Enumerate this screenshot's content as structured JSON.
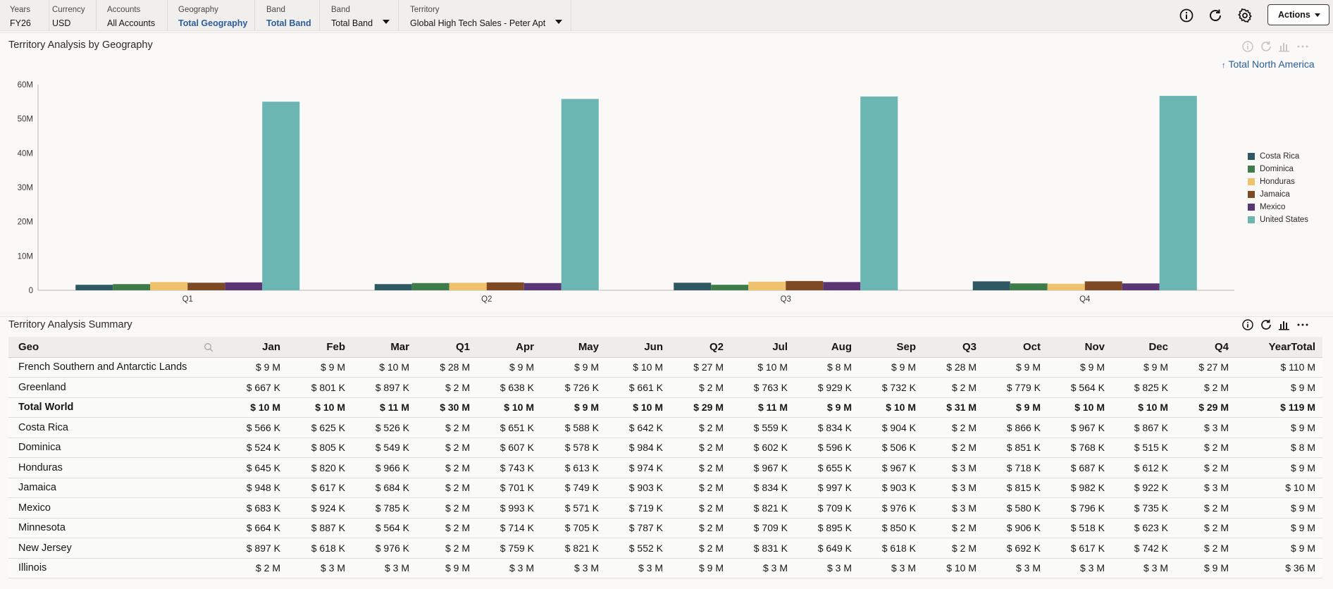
{
  "pov": [
    {
      "label": "Years",
      "value": "FY26",
      "link": false,
      "dropdown": false
    },
    {
      "label": "Currency",
      "value": "USD",
      "link": false,
      "dropdown": false
    },
    {
      "label": "Accounts",
      "value": "All Accounts",
      "link": false,
      "dropdown": false
    },
    {
      "label": "Geography",
      "value": "Total Geography",
      "link": true,
      "dropdown": false
    },
    {
      "label": "Band",
      "value": "Total Band",
      "link": true,
      "dropdown": false
    },
    {
      "label": "Band",
      "value": "Total Band",
      "link": false,
      "dropdown": true
    },
    {
      "label": "Territory",
      "value": "Global High Tech Sales - Peter Apt",
      "link": false,
      "dropdown": true
    }
  ],
  "header": {
    "actions_label": "Actions",
    "icons": [
      "info-icon",
      "refresh-icon",
      "gear-icon"
    ]
  },
  "chart_panel": {
    "title": "Territory Analysis by Geography",
    "drill_link": "Total North America",
    "tools": [
      "info-icon",
      "refresh-icon",
      "chart-icon",
      "more-icon"
    ]
  },
  "chart_data": {
    "type": "bar",
    "categories": [
      "Q1",
      "Q2",
      "Q3",
      "Q4"
    ],
    "series": [
      {
        "name": "Costa Rica",
        "color": "#2f5962",
        "values": [
          1.6,
          1.8,
          2.2,
          2.6
        ]
      },
      {
        "name": "Dominica",
        "color": "#3e7c4a",
        "values": [
          1.8,
          2.1,
          1.6,
          2.0
        ]
      },
      {
        "name": "Honduras",
        "color": "#f0c26e",
        "values": [
          2.4,
          2.2,
          2.5,
          1.9
        ]
      },
      {
        "name": "Jamaica",
        "color": "#7e4a24",
        "values": [
          2.2,
          2.3,
          2.7,
          2.6
        ]
      },
      {
        "name": "Mexico",
        "color": "#5a3574",
        "values": [
          2.3,
          2.1,
          2.4,
          2.0
        ]
      },
      {
        "name": "United States",
        "color": "#6bb6b2",
        "values": [
          55,
          55.8,
          56.5,
          56.7
        ]
      }
    ],
    "y_unit": "M",
    "ylim": [
      0,
      60
    ],
    "yticks": [
      "0",
      "10M",
      "20M",
      "30M",
      "40M",
      "50M",
      "60M"
    ],
    "grid": false,
    "legend": "right"
  },
  "summary_panel": {
    "title": "Territory Analysis Summary",
    "tools": [
      "info-icon",
      "refresh-icon",
      "chart-icon",
      "more-icon"
    ]
  },
  "table": {
    "columns": [
      "Geo",
      "Jan",
      "Feb",
      "Mar",
      "Q1",
      "Apr",
      "May",
      "Jun",
      "Q2",
      "Jul",
      "Aug",
      "Sep",
      "Q3",
      "Oct",
      "Nov",
      "Dec",
      "Q4",
      "YearTotal"
    ],
    "rows": [
      {
        "bold": false,
        "cells": [
          "French Southern and Antarctic Lands",
          "$ 9 M",
          "$ 9 M",
          "$ 10 M",
          "$ 28 M",
          "$ 9 M",
          "$ 9 M",
          "$ 10 M",
          "$ 27 M",
          "$ 10 M",
          "$ 8 M",
          "$ 9 M",
          "$ 28 M",
          "$ 9 M",
          "$ 9 M",
          "$ 9 M",
          "$ 27 M",
          "$ 110 M"
        ]
      },
      {
        "bold": false,
        "cells": [
          "Greenland",
          "$ 667 K",
          "$ 801 K",
          "$ 897 K",
          "$ 2 M",
          "$ 638 K",
          "$ 726 K",
          "$ 661 K",
          "$ 2 M",
          "$ 763 K",
          "$ 929 K",
          "$ 732 K",
          "$ 2 M",
          "$ 779 K",
          "$ 564 K",
          "$ 825 K",
          "$ 2 M",
          "$ 9 M"
        ]
      },
      {
        "bold": true,
        "cells": [
          "Total World",
          "$ 10 M",
          "$ 10 M",
          "$ 11 M",
          "$ 30 M",
          "$ 10 M",
          "$ 9 M",
          "$ 10 M",
          "$ 29 M",
          "$ 11 M",
          "$ 9 M",
          "$ 10 M",
          "$ 31 M",
          "$ 9 M",
          "$ 10 M",
          "$ 10 M",
          "$ 29 M",
          "$ 119 M"
        ]
      },
      {
        "bold": false,
        "cells": [
          "Costa Rica",
          "$ 566 K",
          "$ 625 K",
          "$ 526 K",
          "$ 2 M",
          "$ 651 K",
          "$ 588 K",
          "$ 642 K",
          "$ 2 M",
          "$ 559 K",
          "$ 834 K",
          "$ 904 K",
          "$ 2 M",
          "$ 866 K",
          "$ 967 K",
          "$ 867 K",
          "$ 3 M",
          "$ 9 M"
        ]
      },
      {
        "bold": false,
        "cells": [
          "Dominica",
          "$ 524 K",
          "$ 805 K",
          "$ 549 K",
          "$ 2 M",
          "$ 607 K",
          "$ 578 K",
          "$ 984 K",
          "$ 2 M",
          "$ 602 K",
          "$ 596 K",
          "$ 506 K",
          "$ 2 M",
          "$ 851 K",
          "$ 768 K",
          "$ 515 K",
          "$ 2 M",
          "$ 8 M"
        ]
      },
      {
        "bold": false,
        "cells": [
          "Honduras",
          "$ 645 K",
          "$ 820 K",
          "$ 966 K",
          "$ 2 M",
          "$ 743 K",
          "$ 613 K",
          "$ 974 K",
          "$ 2 M",
          "$ 967 K",
          "$ 655 K",
          "$ 967 K",
          "$ 3 M",
          "$ 718 K",
          "$ 687 K",
          "$ 612 K",
          "$ 2 M",
          "$ 9 M"
        ]
      },
      {
        "bold": false,
        "cells": [
          "Jamaica",
          "$ 948 K",
          "$ 617 K",
          "$ 684 K",
          "$ 2 M",
          "$ 701 K",
          "$ 749 K",
          "$ 903 K",
          "$ 2 M",
          "$ 834 K",
          "$ 997 K",
          "$ 903 K",
          "$ 3 M",
          "$ 815 K",
          "$ 982 K",
          "$ 922 K",
          "$ 3 M",
          "$ 10 M"
        ]
      },
      {
        "bold": false,
        "cells": [
          "Mexico",
          "$ 683 K",
          "$ 924 K",
          "$ 785 K",
          "$ 2 M",
          "$ 993 K",
          "$ 571 K",
          "$ 719 K",
          "$ 2 M",
          "$ 821 K",
          "$ 709 K",
          "$ 976 K",
          "$ 3 M",
          "$ 580 K",
          "$ 796 K",
          "$ 735 K",
          "$ 2 M",
          "$ 9 M"
        ]
      },
      {
        "bold": false,
        "cells": [
          "Minnesota",
          "$ 664 K",
          "$ 887 K",
          "$ 564 K",
          "$ 2 M",
          "$ 714 K",
          "$ 705 K",
          "$ 787 K",
          "$ 2 M",
          "$ 709 K",
          "$ 895 K",
          "$ 850 K",
          "$ 2 M",
          "$ 906 K",
          "$ 518 K",
          "$ 623 K",
          "$ 2 M",
          "$ 9 M"
        ]
      },
      {
        "bold": false,
        "cells": [
          "New Jersey",
          "$ 897 K",
          "$ 618 K",
          "$ 976 K",
          "$ 2 M",
          "$ 759 K",
          "$ 821 K",
          "$ 552 K",
          "$ 2 M",
          "$ 831 K",
          "$ 649 K",
          "$ 618 K",
          "$ 2 M",
          "$ 692 K",
          "$ 617 K",
          "$ 742 K",
          "$ 2 M",
          "$ 9 M"
        ]
      },
      {
        "bold": false,
        "cells": [
          "Illinois",
          "$ 2 M",
          "$ 3 M",
          "$ 3 M",
          "$ 9 M",
          "$ 3 M",
          "$ 3 M",
          "$ 3 M",
          "$ 9 M",
          "$ 3 M",
          "$ 3 M",
          "$ 3 M",
          "$ 10 M",
          "$ 3 M",
          "$ 3 M",
          "$ 3 M",
          "$ 9 M",
          "$ 36 M"
        ]
      }
    ]
  }
}
